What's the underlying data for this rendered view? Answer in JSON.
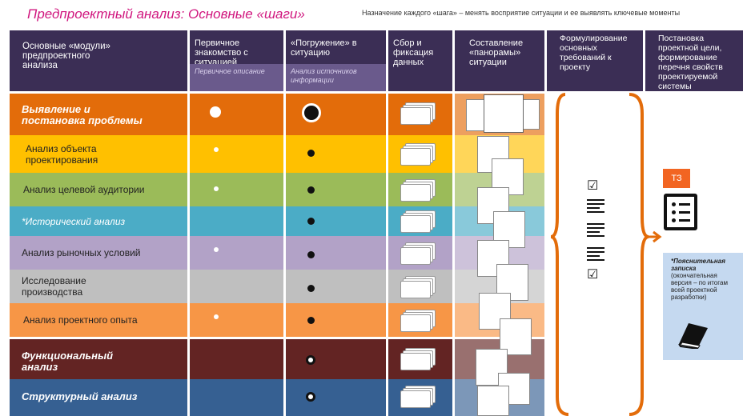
{
  "title": "Предпроектный анализ: Основные «шаги»",
  "subtitle": "Назначение каждого «шага» – менять восприятие ситуации и ее выявлять ключевые моменты",
  "headers": {
    "modules": "Основные «модули» предпроектного анализа",
    "col1": "Первичное знакомство с ситуацией",
    "col1_sub": "Первичное описание",
    "col2": "«Погружение» в ситуацию",
    "col2_sub": "Анализ источников информации",
    "col3": "Сбор и фиксация данных",
    "col4": "Составление «панорамы» ситуации",
    "col5": "Формулирование основных требований к проекту",
    "col6": "Постановка проектной цели, формирование перечня свойств проектируемой системы"
  },
  "rows": [
    {
      "label": "Выявление и постановка проблемы",
      "color": "#e36c0a"
    },
    {
      "label": "Анализ объекта проектирования",
      "color": "#ffc000"
    },
    {
      "label": "Анализ целевой аудитории",
      "color": "#9bbb59"
    },
    {
      "label": "*Исторический анализ",
      "color": "#4bacc6"
    },
    {
      "label": "Анализ рыночных условий",
      "color": "#b2a2c7"
    },
    {
      "label": "Исследование производства",
      "color": "#bfbfbf"
    },
    {
      "label": "Анализ проектного опыта",
      "color": "#f79646"
    },
    {
      "label": "Функциональный анализ",
      "color": "#632423"
    },
    {
      "label": "Структурный анализ",
      "color": "#366092"
    }
  ],
  "output": {
    "tz_label": "ТЗ",
    "note_title": "*Пояснительная записка",
    "note_text": "(окончательная версия – по итогам всей проектной разработки)"
  },
  "colors": {
    "title": "#d0167e",
    "header": "#3b2e55",
    "header_sub": "#6a5a8c",
    "bracket": "#e36c0a"
  },
  "icons": [
    "bullet-dot-icon",
    "paper-stack-icon",
    "panorama-card-icon",
    "checkbox-icon",
    "list-lines-icon",
    "document-list-icon",
    "book-icon"
  ]
}
